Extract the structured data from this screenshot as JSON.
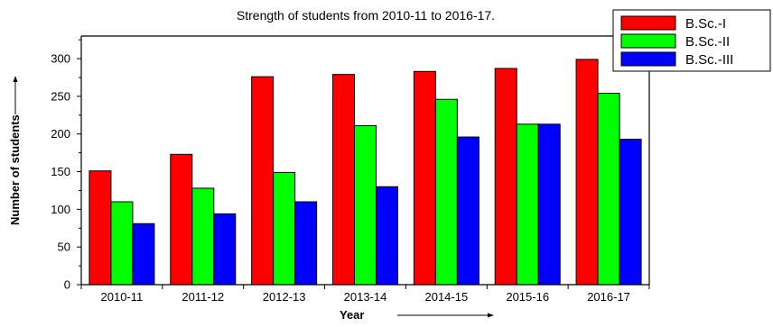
{
  "chart_data": {
    "type": "bar",
    "title": "Strength of students from 2010-11 to 2016-17.",
    "xlabel": "Year",
    "ylabel": "Number of students",
    "categories": [
      "2010-11",
      "2011-12",
      "2012-13",
      "2013-14",
      "2014-15",
      "2015-16",
      "2016-17"
    ],
    "series": [
      {
        "name": "B.Sc.-I",
        "color": "#ff0000",
        "values": [
          151,
          173,
          276,
          279,
          283,
          287,
          299
        ]
      },
      {
        "name": "B.Sc.-II",
        "color": "#00ff00",
        "values": [
          110,
          128,
          149,
          211,
          246,
          213,
          254
        ]
      },
      {
        "name": "B.Sc.-III",
        "color": "#0000ff",
        "values": [
          81,
          94,
          110,
          130,
          196,
          213,
          193
        ]
      }
    ],
    "ylim": [
      0,
      330
    ],
    "yticks": [
      0,
      50,
      100,
      150,
      200,
      250,
      300
    ],
    "grid": false,
    "legend_position": "top-right"
  }
}
